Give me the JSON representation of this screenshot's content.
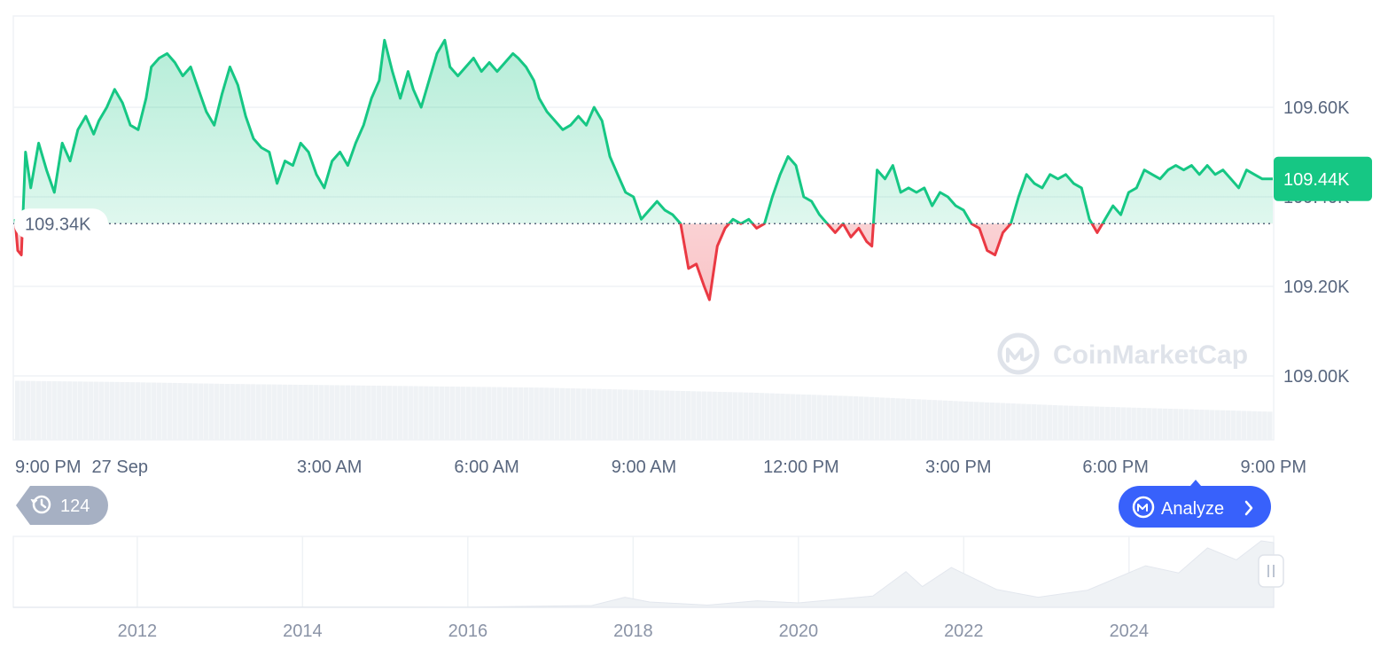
{
  "chart_data": {
    "type": "line",
    "baseline": 109340,
    "opening_label": "109.34K",
    "current_label": "109.44K",
    "ylim": [
      108870,
      109790
    ],
    "yticks": [
      {
        "value": 109000,
        "label": "109.00K"
      },
      {
        "value": 109200,
        "label": "109.20K"
      },
      {
        "value": 109400,
        "label": "109.40K"
      },
      {
        "value": 109600,
        "label": "109.60K"
      }
    ],
    "xlim": [
      0,
      24
    ],
    "xticks": [
      {
        "value": 0,
        "label": "9:00 PM"
      },
      {
        "value": 2,
        "label": "27 Sep"
      },
      {
        "value": 6,
        "label": "3:00 AM"
      },
      {
        "value": 9,
        "label": "6:00 AM"
      },
      {
        "value": 12,
        "label": "9:00 AM"
      },
      {
        "value": 15,
        "label": "12:00 PM"
      },
      {
        "value": 18,
        "label": "3:00 PM"
      },
      {
        "value": 21,
        "label": "6:00 PM"
      },
      {
        "value": 24,
        "label": "9:00 PM"
      }
    ],
    "x_units": "hours since 9:00 PM",
    "price": [
      [
        0,
        109350
      ],
      [
        0.05,
        109280
      ],
      [
        0.12,
        109270
      ],
      [
        0.2,
        109500
      ],
      [
        0.3,
        109420
      ],
      [
        0.45,
        109520
      ],
      [
        0.6,
        109460
      ],
      [
        0.75,
        109410
      ],
      [
        0.9,
        109520
      ],
      [
        1.05,
        109480
      ],
      [
        1.2,
        109550
      ],
      [
        1.35,
        109580
      ],
      [
        1.5,
        109540
      ],
      [
        1.6,
        109570
      ],
      [
        1.75,
        109600
      ],
      [
        1.9,
        109640
      ],
      [
        2.05,
        109610
      ],
      [
        2.2,
        109560
      ],
      [
        2.35,
        109550
      ],
      [
        2.5,
        109620
      ],
      [
        2.6,
        109690
      ],
      [
        2.75,
        109710
      ],
      [
        2.9,
        109720
      ],
      [
        3.05,
        109700
      ],
      [
        3.2,
        109670
      ],
      [
        3.35,
        109690
      ],
      [
        3.5,
        109640
      ],
      [
        3.65,
        109590
      ],
      [
        3.8,
        109560
      ],
      [
        3.95,
        109630
      ],
      [
        4.1,
        109690
      ],
      [
        4.25,
        109650
      ],
      [
        4.4,
        109580
      ],
      [
        4.55,
        109530
      ],
      [
        4.7,
        109510
      ],
      [
        4.85,
        109500
      ],
      [
        5.0,
        109430
      ],
      [
        5.15,
        109480
      ],
      [
        5.3,
        109470
      ],
      [
        5.45,
        109520
      ],
      [
        5.6,
        109500
      ],
      [
        5.75,
        109450
      ],
      [
        5.9,
        109420
      ],
      [
        6.05,
        109480
      ],
      [
        6.2,
        109500
      ],
      [
        6.35,
        109470
      ],
      [
        6.5,
        109520
      ],
      [
        6.65,
        109560
      ],
      [
        6.8,
        109620
      ],
      [
        6.95,
        109660
      ],
      [
        7.05,
        109750
      ],
      [
        7.2,
        109680
      ],
      [
        7.35,
        109620
      ],
      [
        7.5,
        109680
      ],
      [
        7.6,
        109640
      ],
      [
        7.75,
        109600
      ],
      [
        7.9,
        109660
      ],
      [
        8.05,
        109720
      ],
      [
        8.2,
        109750
      ],
      [
        8.3,
        109690
      ],
      [
        8.45,
        109670
      ],
      [
        8.6,
        109690
      ],
      [
        8.75,
        109710
      ],
      [
        8.9,
        109680
      ],
      [
        9.05,
        109700
      ],
      [
        9.2,
        109680
      ],
      [
        9.35,
        109700
      ],
      [
        9.5,
        109720
      ],
      [
        9.6,
        109710
      ],
      [
        9.75,
        109690
      ],
      [
        9.9,
        109660
      ],
      [
        10.0,
        109620
      ],
      [
        10.15,
        109590
      ],
      [
        10.3,
        109570
      ],
      [
        10.45,
        109550
      ],
      [
        10.6,
        109560
      ],
      [
        10.75,
        109580
      ],
      [
        10.9,
        109560
      ],
      [
        11.05,
        109600
      ],
      [
        11.2,
        109570
      ],
      [
        11.35,
        109490
      ],
      [
        11.5,
        109450
      ],
      [
        11.65,
        109410
      ],
      [
        11.8,
        109400
      ],
      [
        11.95,
        109350
      ],
      [
        12.1,
        109370
      ],
      [
        12.25,
        109390
      ],
      [
        12.4,
        109370
      ],
      [
        12.55,
        109360
      ],
      [
        12.7,
        109340
      ],
      [
        12.85,
        109240
      ],
      [
        13.0,
        109250
      ],
      [
        13.15,
        109200
      ],
      [
        13.25,
        109170
      ],
      [
        13.4,
        109290
      ],
      [
        13.55,
        109330
      ],
      [
        13.7,
        109350
      ],
      [
        13.85,
        109340
      ],
      [
        14.0,
        109350
      ],
      [
        14.15,
        109330
      ],
      [
        14.3,
        109340
      ],
      [
        14.45,
        109400
      ],
      [
        14.6,
        109450
      ],
      [
        14.75,
        109490
      ],
      [
        14.9,
        109470
      ],
      [
        15.05,
        109400
      ],
      [
        15.2,
        109390
      ],
      [
        15.35,
        109360
      ],
      [
        15.5,
        109340
      ],
      [
        15.65,
        109320
      ],
      [
        15.8,
        109340
      ],
      [
        15.95,
        109310
      ],
      [
        16.1,
        109330
      ],
      [
        16.25,
        109300
      ],
      [
        16.35,
        109290
      ],
      [
        16.45,
        109460
      ],
      [
        16.6,
        109440
      ],
      [
        16.75,
        109470
      ],
      [
        16.9,
        109410
      ],
      [
        17.05,
        109420
      ],
      [
        17.2,
        109410
      ],
      [
        17.35,
        109420
      ],
      [
        17.5,
        109380
      ],
      [
        17.65,
        109410
      ],
      [
        17.8,
        109400
      ],
      [
        17.95,
        109380
      ],
      [
        18.1,
        109370
      ],
      [
        18.25,
        109340
      ],
      [
        18.4,
        109330
      ],
      [
        18.55,
        109280
      ],
      [
        18.7,
        109270
      ],
      [
        18.85,
        109320
      ],
      [
        19.0,
        109340
      ],
      [
        19.15,
        109400
      ],
      [
        19.3,
        109450
      ],
      [
        19.45,
        109430
      ],
      [
        19.6,
        109420
      ],
      [
        19.75,
        109450
      ],
      [
        19.9,
        109440
      ],
      [
        20.05,
        109450
      ],
      [
        20.2,
        109430
      ],
      [
        20.35,
        109420
      ],
      [
        20.5,
        109350
      ],
      [
        20.65,
        109320
      ],
      [
        20.8,
        109350
      ],
      [
        20.95,
        109380
      ],
      [
        21.1,
        109360
      ],
      [
        21.25,
        109410
      ],
      [
        21.4,
        109420
      ],
      [
        21.55,
        109460
      ],
      [
        21.7,
        109450
      ],
      [
        21.85,
        109440
      ],
      [
        22.0,
        109460
      ],
      [
        22.15,
        109470
      ],
      [
        22.3,
        109460
      ],
      [
        22.45,
        109470
      ],
      [
        22.6,
        109450
      ],
      [
        22.75,
        109470
      ],
      [
        22.9,
        109450
      ],
      [
        23.05,
        109460
      ],
      [
        23.2,
        109440
      ],
      [
        23.35,
        109420
      ],
      [
        23.5,
        109460
      ],
      [
        23.65,
        109450
      ],
      [
        23.8,
        109440
      ],
      [
        24.0,
        109440
      ]
    ],
    "volume": [
      [
        0,
        0.95
      ],
      [
        2,
        0.93
      ],
      [
        4,
        0.9
      ],
      [
        6,
        0.88
      ],
      [
        8,
        0.86
      ],
      [
        10,
        0.84
      ],
      [
        12,
        0.8
      ],
      [
        14,
        0.76
      ],
      [
        16,
        0.7
      ],
      [
        18,
        0.62
      ],
      [
        20,
        0.55
      ],
      [
        22,
        0.5
      ],
      [
        24,
        0.45
      ]
    ],
    "navigator": {
      "xticks": [
        {
          "value": 2012,
          "label": "2012"
        },
        {
          "value": 2014,
          "label": "2014"
        },
        {
          "value": 2016,
          "label": "2016"
        },
        {
          "value": 2018,
          "label": "2018"
        },
        {
          "value": 2020,
          "label": "2020"
        },
        {
          "value": 2022,
          "label": "2022"
        },
        {
          "value": 2024,
          "label": "2024"
        }
      ],
      "xlim": [
        2010.5,
        2025.75
      ],
      "ylim": [
        0,
        115000
      ],
      "series": [
        [
          2010.5,
          0
        ],
        [
          2013.0,
          200
        ],
        [
          2014.0,
          600
        ],
        [
          2016.0,
          500
        ],
        [
          2017.5,
          3000
        ],
        [
          2017.9,
          17000
        ],
        [
          2018.2,
          9000
        ],
        [
          2018.9,
          3800
        ],
        [
          2019.5,
          11000
        ],
        [
          2020.0,
          7500
        ],
        [
          2020.9,
          19000
        ],
        [
          2021.3,
          60000
        ],
        [
          2021.5,
          35000
        ],
        [
          2021.85,
          67000
        ],
        [
          2022.4,
          30000
        ],
        [
          2022.9,
          17000
        ],
        [
          2023.5,
          29000
        ],
        [
          2024.2,
          70000
        ],
        [
          2024.6,
          58000
        ],
        [
          2024.95,
          100000
        ],
        [
          2025.3,
          80000
        ],
        [
          2025.6,
          112000
        ],
        [
          2025.75,
          109000
        ]
      ]
    },
    "colors": {
      "up": "#16c784",
      "down": "#ea3943"
    }
  },
  "watermark": "CoinMarketCap",
  "history_badge": {
    "icon": "history-icon",
    "count": "124"
  },
  "analyze_button": {
    "label": "Analyze",
    "icon": "cmc-ai-icon"
  }
}
